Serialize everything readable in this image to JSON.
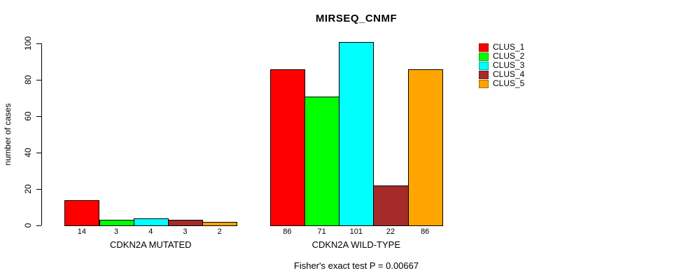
{
  "chart_data": {
    "type": "bar",
    "title": "MIRSEQ_CNMF",
    "ylabel": "number of cases",
    "ylim": [
      0,
      100
    ],
    "yticks": [
      0,
      20,
      40,
      60,
      80,
      100
    ],
    "grid": false,
    "legend_position": "right",
    "categories": [
      "CDKN2A MUTATED",
      "CDKN2A WILD-TYPE"
    ],
    "series": [
      {
        "name": "CLUS_1",
        "color": "#FF0000",
        "values": [
          14,
          86
        ]
      },
      {
        "name": "CLUS_2",
        "color": "#00FF00",
        "values": [
          3,
          71
        ]
      },
      {
        "name": "CLUS_3",
        "color": "#00FFFF",
        "values": [
          4,
          101
        ]
      },
      {
        "name": "CLUS_4",
        "color": "#A52A2A",
        "values": [
          3,
          22
        ]
      },
      {
        "name": "CLUS_5",
        "color": "#FFA500",
        "values": [
          2,
          86
        ]
      }
    ],
    "bar_value_labels_shown": true,
    "annotation": "Fisher's exact test P = 0.00667"
  },
  "colors": {
    "background": "#FFFFFF",
    "axis": "#000000",
    "text": "#000000"
  }
}
